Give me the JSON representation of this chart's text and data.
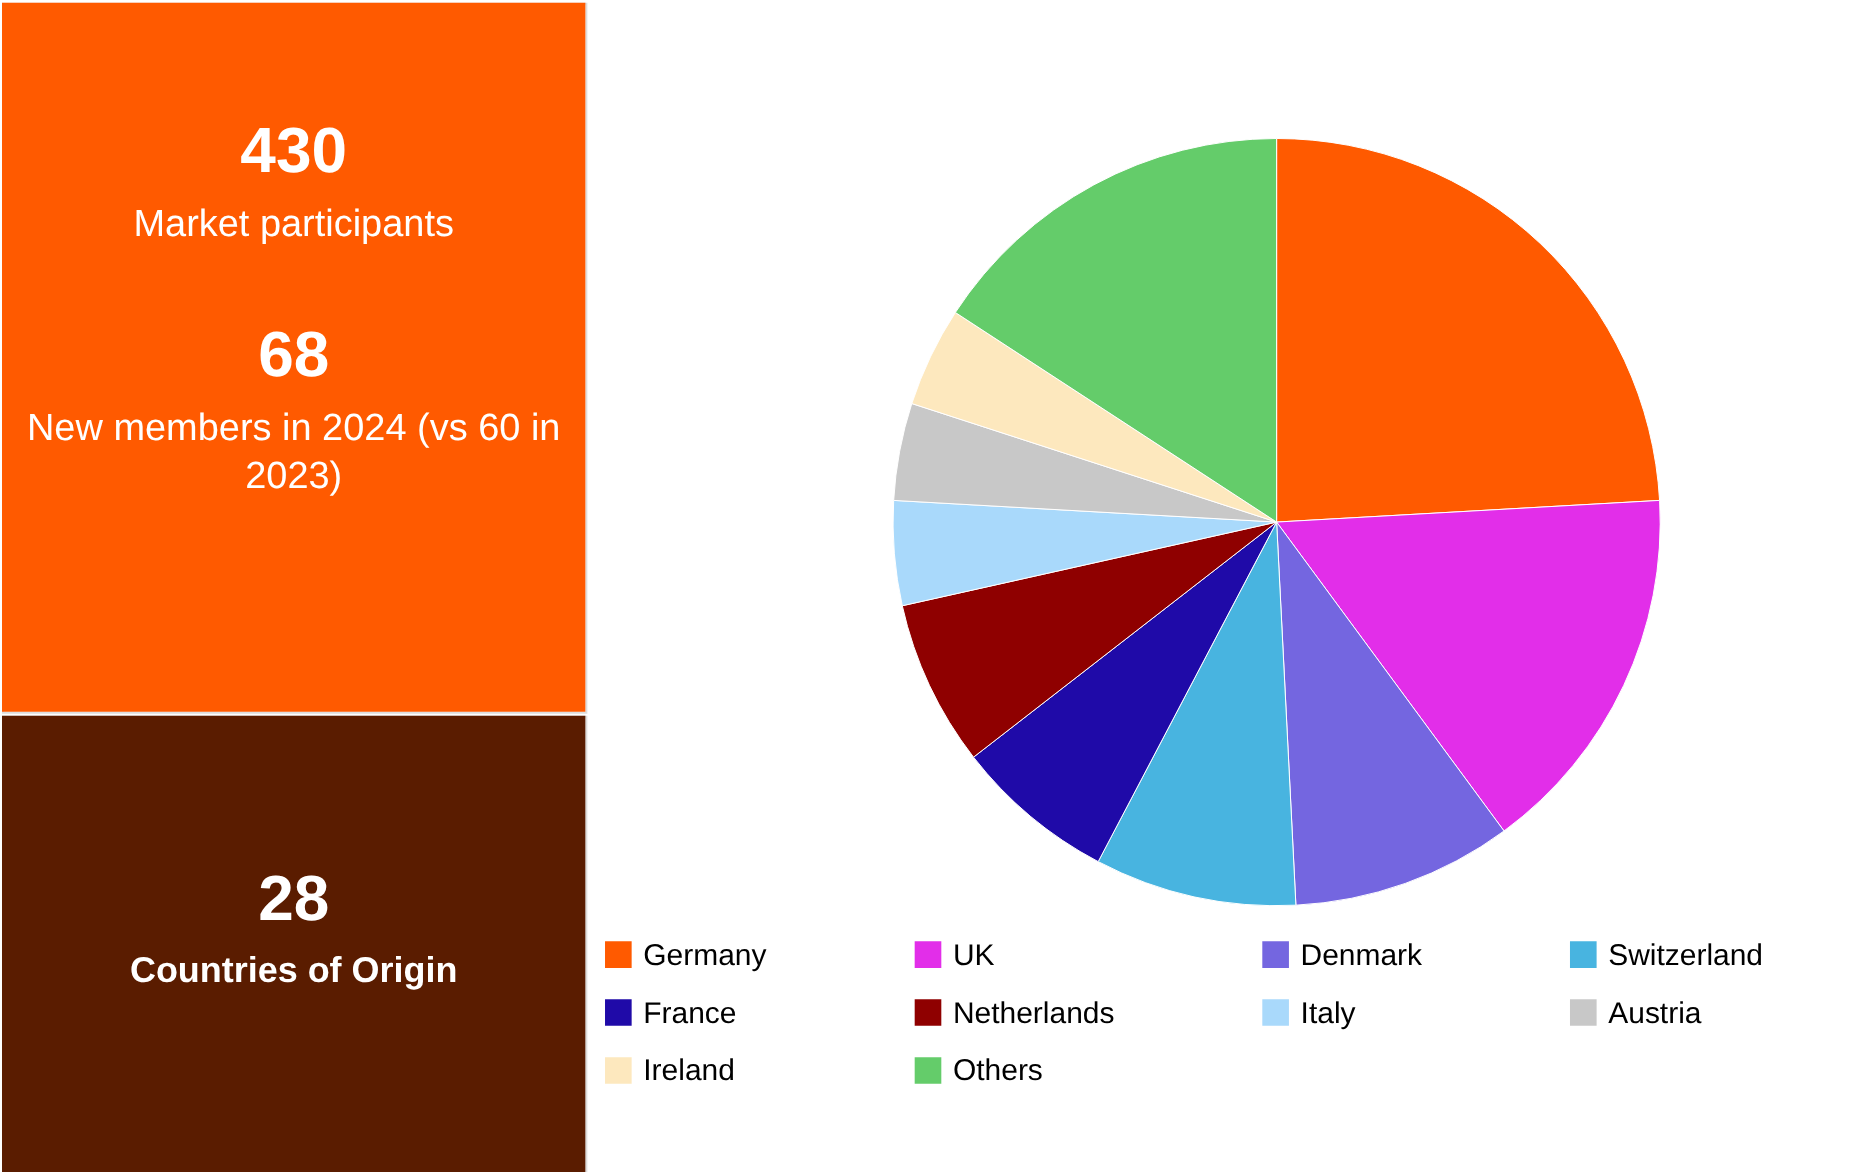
{
  "chart_data": [
    {
      "type": "other",
      "color": "#ff5a00",
      "annotations": [
        "430",
        "Market participants",
        "68",
        "New members in 2024 (vs 60 in 2023)"
      ]
    },
    {
      "type": "other",
      "color": "#5a1c00",
      "annotations": [
        "28",
        "Countries of Origin"
      ]
    },
    {
      "type": "pie",
      "categories": [
        "Germany",
        "UK",
        "Denmark",
        "Switzerland",
        "France",
        "Netherlands",
        "Italy",
        "Austria",
        "Ireland",
        "Others"
      ],
      "values": [
        24.1,
        15.8,
        9.3,
        8.5,
        6.8,
        7.0,
        4.4,
        4.1,
        4.2,
        15.8
      ],
      "colors": [
        "#ff5a00",
        "#e22ee9",
        "#7466e0",
        "#48b4e0",
        "#1f0aa8",
        "#8f0000",
        "#a9d9fb",
        "#c8c8c8",
        "#fde8be",
        "#64cc6a"
      ],
      "legend": "bottom"
    }
  ]
}
